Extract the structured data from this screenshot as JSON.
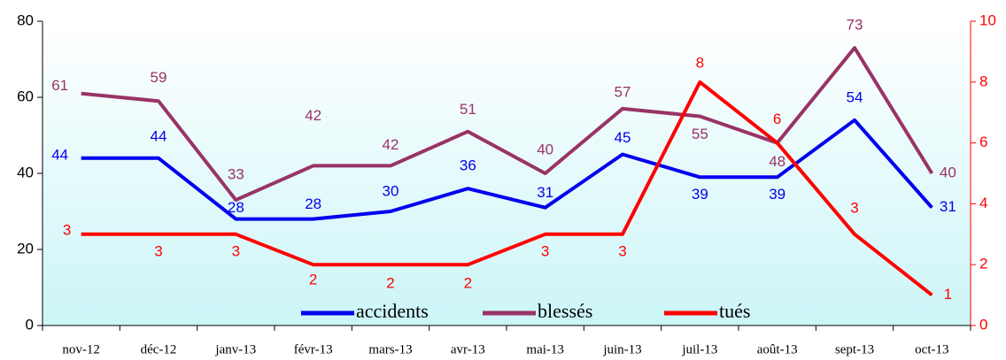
{
  "chart_data": {
    "type": "line",
    "categories": [
      "nov-12",
      "déc-12",
      "janv-13",
      "févr-13",
      "mars-13",
      "avr-13",
      "mai-13",
      "juin-13",
      "juil-13",
      "août-13",
      "sept-13",
      "oct-13"
    ],
    "series": [
      {
        "name": "accidents",
        "color": "#0000ee",
        "values": [
          44,
          44,
          28,
          28,
          30,
          36,
          31,
          45,
          39,
          39,
          54,
          31
        ]
      },
      {
        "name": "blessés",
        "color": "#993366",
        "values": [
          61,
          59,
          33,
          42,
          42,
          51,
          40,
          57,
          55,
          48,
          73,
          40
        ]
      },
      {
        "name": "tués",
        "color": "#ff0000",
        "axis": "y2",
        "values": [
          3,
          3,
          3,
          2,
          2,
          2,
          3,
          3,
          8,
          6,
          3,
          1
        ]
      }
    ],
    "ylim": [
      0,
      80
    ],
    "yticks": [
      0,
      20,
      40,
      60,
      80
    ],
    "y2lim": [
      0,
      10
    ],
    "y2ticks": [
      0,
      2,
      4,
      6,
      8,
      10
    ],
    "y2color": "#ff0000",
    "legend": "lower center",
    "grid": false
  }
}
